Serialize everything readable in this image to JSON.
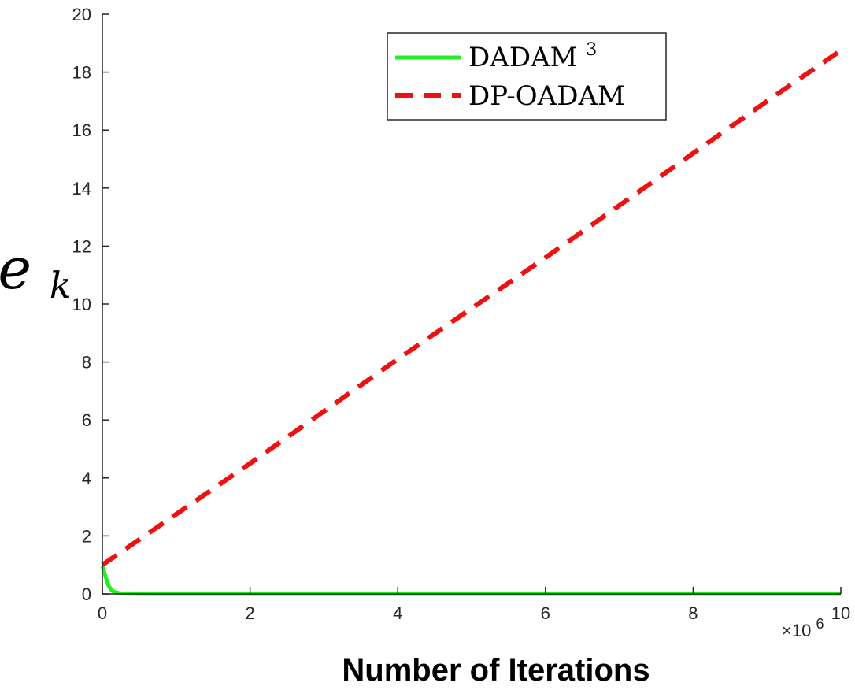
{
  "chart_data": {
    "type": "line",
    "title": "",
    "xlabel": "Number of Iterations",
    "ylabel": "e_k",
    "ylabel_base": "e",
    "ylabel_sub": "k",
    "xlim": [
      0,
      10
    ],
    "ylim": [
      0,
      20
    ],
    "x_multiplier": "×10",
    "x_multiplier_exp": "6",
    "xticks": [
      "0",
      "2",
      "4",
      "6",
      "8",
      "10"
    ],
    "yticks": [
      "0",
      "2",
      "4",
      "6",
      "8",
      "10",
      "12",
      "14",
      "16",
      "18",
      "20"
    ],
    "legend_position": "top-right",
    "grid": false,
    "series": [
      {
        "name": "DADAM³",
        "name_base": "DADAM",
        "name_sup": "3",
        "color": "#22ee22",
        "style": "solid",
        "x": [
          0,
          0.02,
          0.05,
          0.08,
          0.12,
          0.16,
          0.2,
          0.25,
          0.3,
          0.4,
          0.6,
          1,
          2,
          4,
          6,
          8,
          10
        ],
        "y": [
          0.95,
          0.8,
          0.55,
          0.3,
          0.14,
          0.07,
          0.04,
          0.02,
          0.01,
          0.005,
          0,
          0,
          0,
          0,
          0,
          0,
          0
        ]
      },
      {
        "name": "DP-OADAM",
        "color": "#ee1111",
        "style": "dashed",
        "x": [
          0,
          1,
          2,
          3,
          4,
          5,
          6,
          7,
          8,
          9,
          10
        ],
        "y": [
          1.0,
          2.75,
          4.5,
          6.3,
          8.1,
          9.85,
          11.6,
          13.4,
          15.2,
          17.0,
          18.75
        ]
      }
    ]
  }
}
